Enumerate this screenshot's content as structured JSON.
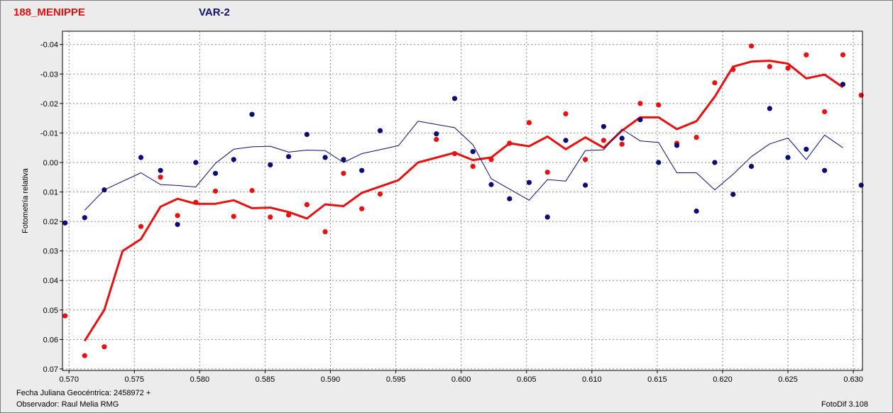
{
  "header": {
    "title_red": "188_MENIPPE",
    "title_blue": "VAR-2"
  },
  "footer": {
    "julian_date": "Fecha Juliana Geocéntrica: 2458972 +",
    "observer": "Observador: Raul Melia RMG",
    "software": "FotoDif 3.108"
  },
  "colors": {
    "red": "#e81010",
    "blue": "#0c0c78",
    "grid": "#8a8a8a",
    "plot_bg": "#ffffff"
  },
  "chart_data": {
    "type": "scatter",
    "ylabel": "Fotometría relativa",
    "xlim": [
      0.5695,
      0.6307
    ],
    "ylim": [
      -0.0445,
      0.0705
    ],
    "y_inverted": true,
    "grid": true,
    "x_ticks": [
      {
        "v": 0.57,
        "label": "0.570"
      },
      {
        "v": 0.575,
        "label": "0.575"
      },
      {
        "v": 0.58,
        "label": "0.580"
      },
      {
        "v": 0.585,
        "label": "0.585"
      },
      {
        "v": 0.59,
        "label": "0.590"
      },
      {
        "v": 0.595,
        "label": "0.595"
      },
      {
        "v": 0.6,
        "label": "0.600"
      },
      {
        "v": 0.605,
        "label": "0.605"
      },
      {
        "v": 0.61,
        "label": "0.610"
      },
      {
        "v": 0.615,
        "label": "0.615"
      },
      {
        "v": 0.62,
        "label": "0.620"
      },
      {
        "v": 0.625,
        "label": "0.625"
      },
      {
        "v": 0.63,
        "label": "0.630"
      }
    ],
    "y_ticks": [
      {
        "v": -0.04,
        "label": "-0.04"
      },
      {
        "v": -0.03,
        "label": "-0.03"
      },
      {
        "v": -0.02,
        "label": "-0.02"
      },
      {
        "v": -0.01,
        "label": "-0.01"
      },
      {
        "v": 0.0,
        "label": "0.00"
      },
      {
        "v": 0.01,
        "label": "0.01"
      },
      {
        "v": 0.02,
        "label": "0.02"
      },
      {
        "v": 0.03,
        "label": "0.03"
      },
      {
        "v": 0.04,
        "label": "0.04"
      },
      {
        "v": 0.05,
        "label": "0.05"
      },
      {
        "v": 0.06,
        "label": "0.06"
      },
      {
        "v": 0.07,
        "label": "0.07"
      }
    ],
    "series": [
      {
        "color": "red",
        "points": [
          [
            0.5697,
            0.052
          ],
          [
            0.5712,
            0.0655
          ],
          [
            0.5727,
            0.0625
          ],
          [
            0.5755,
            0.0217
          ],
          [
            0.577,
            0.005
          ],
          [
            0.5783,
            0.018
          ],
          [
            0.5797,
            0.0135
          ],
          [
            0.5812,
            0.0097
          ],
          [
            0.5826,
            0.0183
          ],
          [
            0.584,
            0.0095
          ],
          [
            0.5854,
            0.0185
          ],
          [
            0.5868,
            0.0178
          ],
          [
            0.5882,
            0.0143
          ],
          [
            0.5896,
            0.0235
          ],
          [
            0.591,
            0.0037
          ],
          [
            0.5924,
            0.0157
          ],
          [
            0.5938,
            0.0107
          ],
          [
            0.5981,
            -0.0078
          ],
          [
            0.5995,
            -0.003
          ],
          [
            0.6009,
            0.0013
          ],
          [
            0.6023,
            -0.001
          ],
          [
            0.6037,
            -0.0065
          ],
          [
            0.6052,
            -0.0135
          ],
          [
            0.6066,
            0.0033
          ],
          [
            0.608,
            -0.0165
          ],
          [
            0.6095,
            -0.001
          ],
          [
            0.6109,
            -0.0075
          ],
          [
            0.6123,
            -0.0062
          ],
          [
            0.6137,
            -0.02
          ],
          [
            0.6151,
            -0.0195
          ],
          [
            0.6165,
            -0.0065
          ],
          [
            0.618,
            -0.0085
          ],
          [
            0.6194,
            -0.027
          ],
          [
            0.6208,
            -0.0315
          ],
          [
            0.6222,
            -0.0395
          ],
          [
            0.6236,
            -0.0325
          ],
          [
            0.625,
            -0.032
          ],
          [
            0.6264,
            -0.0365
          ],
          [
            0.6278,
            -0.0172
          ],
          [
            0.6292,
            -0.0365
          ],
          [
            0.6306,
            -0.0228
          ]
        ],
        "line": [
          [
            0.5712,
            0.0605
          ],
          [
            0.5727,
            0.05
          ],
          [
            0.5741,
            0.03
          ],
          [
            0.5755,
            0.026
          ],
          [
            0.577,
            0.015
          ],
          [
            0.5783,
            0.0123
          ],
          [
            0.5797,
            0.014
          ],
          [
            0.5812,
            0.014
          ],
          [
            0.5826,
            0.0128
          ],
          [
            0.584,
            0.0155
          ],
          [
            0.5854,
            0.0153
          ],
          [
            0.5868,
            0.0168
          ],
          [
            0.5882,
            0.019
          ],
          [
            0.5896,
            0.0142
          ],
          [
            0.591,
            0.0148
          ],
          [
            0.5924,
            0.0103
          ],
          [
            0.5952,
            0.006
          ],
          [
            0.5967,
            0.0
          ],
          [
            0.5995,
            -0.0033
          ],
          [
            0.6009,
            -0.0008
          ],
          [
            0.6023,
            -0.0017
          ],
          [
            0.6037,
            -0.0065
          ],
          [
            0.6052,
            -0.0055
          ],
          [
            0.6066,
            -0.0088
          ],
          [
            0.608,
            -0.0045
          ],
          [
            0.6095,
            -0.0085
          ],
          [
            0.6109,
            -0.005
          ],
          [
            0.6123,
            -0.0108
          ],
          [
            0.6137,
            -0.0153
          ],
          [
            0.6151,
            -0.0153
          ],
          [
            0.6165,
            -0.0113
          ],
          [
            0.618,
            -0.014
          ],
          [
            0.6194,
            -0.0223
          ],
          [
            0.6208,
            -0.0325
          ],
          [
            0.6222,
            -0.0342
          ],
          [
            0.6236,
            -0.0345
          ],
          [
            0.625,
            -0.0335
          ],
          [
            0.6264,
            -0.0285
          ],
          [
            0.6278,
            -0.0298
          ],
          [
            0.6292,
            -0.0255
          ]
        ]
      },
      {
        "color": "blue",
        "points": [
          [
            0.5697,
            0.0205
          ],
          [
            0.5712,
            0.0187
          ],
          [
            0.5727,
            0.0093
          ],
          [
            0.5755,
            -0.0017
          ],
          [
            0.577,
            0.0027
          ],
          [
            0.5783,
            0.021
          ],
          [
            0.5797,
            0.0
          ],
          [
            0.5812,
            0.0037
          ],
          [
            0.5826,
            -0.001
          ],
          [
            0.584,
            -0.0163
          ],
          [
            0.5854,
            0.0008
          ],
          [
            0.5868,
            -0.002
          ],
          [
            0.5882,
            -0.0095
          ],
          [
            0.5896,
            -0.0017
          ],
          [
            0.591,
            -0.001
          ],
          [
            0.5924,
            0.0027
          ],
          [
            0.5938,
            -0.0108
          ],
          [
            0.5981,
            -0.0097
          ],
          [
            0.5995,
            -0.0217
          ],
          [
            0.6009,
            -0.0037
          ],
          [
            0.6023,
            0.0075
          ],
          [
            0.6037,
            0.0123
          ],
          [
            0.6052,
            0.0068
          ],
          [
            0.6066,
            0.0185
          ],
          [
            0.608,
            -0.0075
          ],
          [
            0.6095,
            0.0077
          ],
          [
            0.6109,
            -0.0122
          ],
          [
            0.6123,
            -0.0082
          ],
          [
            0.6137,
            -0.0145
          ],
          [
            0.6151,
            0.0
          ],
          [
            0.6165,
            -0.0058
          ],
          [
            0.618,
            0.0165
          ],
          [
            0.6194,
            0.0
          ],
          [
            0.6208,
            0.0108
          ],
          [
            0.6222,
            0.0013
          ],
          [
            0.6236,
            -0.0183
          ],
          [
            0.625,
            -0.0017
          ],
          [
            0.6264,
            -0.0045
          ],
          [
            0.6278,
            0.0027
          ],
          [
            0.6292,
            -0.0265
          ],
          [
            0.6306,
            0.0077
          ]
        ],
        "line": [
          [
            0.5712,
            0.0162
          ],
          [
            0.5727,
            0.0093
          ],
          [
            0.5755,
            0.0035
          ],
          [
            0.577,
            0.0075
          ],
          [
            0.5783,
            0.0078
          ],
          [
            0.5797,
            0.0083
          ],
          [
            0.5812,
            0.0003
          ],
          [
            0.5826,
            -0.0045
          ],
          [
            0.584,
            -0.0053
          ],
          [
            0.5854,
            -0.0055
          ],
          [
            0.5868,
            -0.0035
          ],
          [
            0.5882,
            -0.0042
          ],
          [
            0.5896,
            -0.004
          ],
          [
            0.591,
            0.0
          ],
          [
            0.5924,
            -0.003
          ],
          [
            0.5952,
            -0.0057
          ],
          [
            0.5967,
            -0.014
          ],
          [
            0.5995,
            -0.0118
          ],
          [
            0.6009,
            -0.006
          ],
          [
            0.6023,
            0.0055
          ],
          [
            0.6052,
            0.0128
          ],
          [
            0.6066,
            0.0058
          ],
          [
            0.608,
            0.0063
          ],
          [
            0.6095,
            -0.004
          ],
          [
            0.6109,
            -0.0043
          ],
          [
            0.6123,
            -0.0113
          ],
          [
            0.6137,
            -0.0073
          ],
          [
            0.6151,
            -0.0068
          ],
          [
            0.6165,
            0.0035
          ],
          [
            0.618,
            0.0035
          ],
          [
            0.6194,
            0.0093
          ],
          [
            0.6208,
            0.004
          ],
          [
            0.6222,
            -0.002
          ],
          [
            0.6236,
            -0.0063
          ],
          [
            0.625,
            -0.0083
          ],
          [
            0.6264,
            -0.001
          ],
          [
            0.6278,
            -0.0093
          ],
          [
            0.6292,
            -0.005
          ]
        ]
      }
    ]
  }
}
